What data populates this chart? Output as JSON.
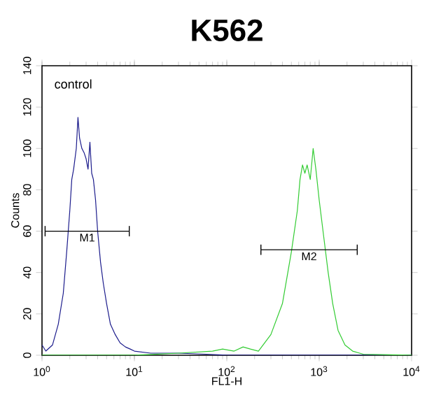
{
  "chart_data": {
    "type": "line",
    "title": "K562",
    "xlabel": "FL1-H",
    "ylabel": "Counts",
    "log": "x",
    "xlim": [
      1,
      10000
    ],
    "ylim": [
      0,
      140
    ],
    "xticks": [
      {
        "value": 1,
        "label": "10$^{0}$"
      },
      {
        "value": 10,
        "label": "10$^{1}$"
      },
      {
        "value": 100,
        "label": "10$^{2}$"
      },
      {
        "value": 1000,
        "label": "10$^{3}$"
      },
      {
        "value": 10000,
        "label": "10$^{4}$"
      }
    ],
    "yticks": [
      0,
      20,
      40,
      60,
      80,
      100,
      120,
      140
    ],
    "grid": false,
    "marker": "none",
    "line_style": "solid",
    "series": [
      {
        "name": "control",
        "color": "#1c1c8c",
        "x": [
          1.0,
          1.1,
          1.3,
          1.5,
          1.7,
          1.85,
          2.0,
          2.1,
          2.2,
          2.35,
          2.45,
          2.55,
          2.7,
          2.85,
          3.0,
          3.15,
          3.3,
          3.45,
          3.6,
          3.8,
          4.0,
          4.3,
          4.6,
          5.0,
          5.5,
          6.2,
          7,
          8,
          9,
          10,
          15,
          30,
          60,
          100,
          1000,
          10000
        ],
        "values": [
          5,
          2,
          5,
          15,
          30,
          50,
          70,
          85,
          90,
          100,
          115,
          105,
          100,
          98,
          95,
          90,
          103,
          88,
          85,
          75,
          60,
          45,
          35,
          25,
          15,
          10,
          6,
          4,
          3,
          2,
          1,
          1,
          0.5,
          0,
          0,
          0
        ]
      },
      {
        "color": "#33cc33",
        "x": [
          1,
          10,
          30,
          70,
          90,
          120,
          150,
          180,
          220,
          300,
          400,
          500,
          580,
          620,
          660,
          700,
          740,
          800,
          860,
          920,
          1000,
          1100,
          1250,
          1400,
          1600,
          1900,
          2300,
          3000,
          10000
        ],
        "values": [
          0,
          0,
          1,
          2,
          3,
          2,
          4,
          3,
          2,
          10,
          25,
          50,
          70,
          85,
          92,
          88,
          92,
          85,
          100,
          90,
          75,
          60,
          40,
          25,
          12,
          5,
          2,
          0.5,
          0
        ]
      },
      {
        "name": "M1",
        "color": "#000000",
        "x": [
          1.08,
          8.8
        ],
        "values": [
          60,
          60
        ],
        "errors": [
          2.5,
          2.5
        ]
      },
      {
        "name": "M2",
        "color": "#000000",
        "x": [
          234,
          2580
        ],
        "values": [
          51,
          51
        ],
        "errors": [
          2.5,
          2.5
        ]
      }
    ]
  }
}
